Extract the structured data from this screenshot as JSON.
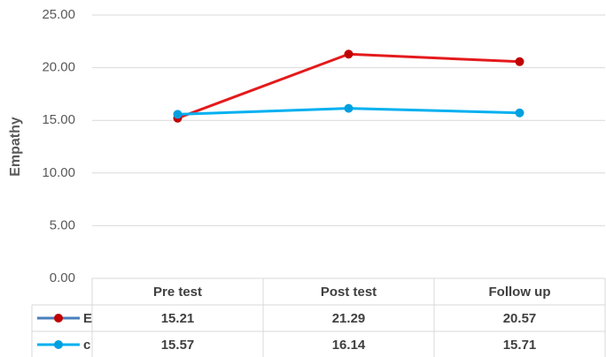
{
  "chart_data": {
    "type": "line",
    "y_label": "Empathy",
    "categories": [
      "Pre test",
      "Post test",
      "Follow up"
    ],
    "series": [
      {
        "name": "E",
        "color": "#e41a1c",
        "marker_color": "#c00000",
        "values": [
          15.21,
          21.29,
          20.57
        ]
      },
      {
        "name": "c",
        "color": "#00b0f0",
        "marker_color": "#00a0e0",
        "values": [
          15.57,
          16.14,
          15.71
        ]
      }
    ],
    "ylim": [
      0,
      25
    ],
    "yticks": [
      {
        "value": 0,
        "label": "0.00"
      },
      {
        "value": 5,
        "label": "5.00"
      },
      {
        "value": 10,
        "label": "10.00"
      },
      {
        "value": 15,
        "label": "15.00"
      },
      {
        "value": 20,
        "label": "20.00"
      },
      {
        "value": 25,
        "label": "25.00"
      }
    ],
    "grid": true
  }
}
